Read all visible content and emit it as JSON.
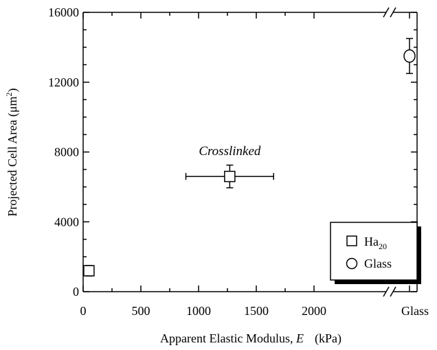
{
  "chart_data": {
    "type": "scatter",
    "xlabel": {
      "text": "Apparent Elastic Modulus, ",
      "symbol": "E",
      "unit": "(kPa)"
    },
    "ylabel": {
      "prefix": "Projected Cell Area (",
      "unit": "μm",
      "sup": "2",
      "suffix": ")"
    },
    "xlim": [
      0,
      2500
    ],
    "ylim": [
      0,
      16000
    ],
    "xticks": [
      0,
      500,
      1000,
      1500,
      2000
    ],
    "xtick_labels": [
      "0",
      "500",
      "1000",
      "1500",
      "2000"
    ],
    "extra_xtick_label": "Glass",
    "yticks": [
      0,
      4000,
      8000,
      12000,
      16000
    ],
    "ytick_labels": [
      "0",
      "4000",
      "8000",
      "12000",
      "16000"
    ],
    "axis_break": true,
    "grid": false,
    "legend_position": "bottom-right",
    "series": [
      {
        "name": "Ha",
        "name_sub": "20",
        "marker": "square",
        "points": [
          {
            "x": 50,
            "y": 1200,
            "xerr": 30,
            "yerr": 300
          },
          {
            "x": 1270,
            "y": 6600,
            "xerr": 380,
            "yerr": 650
          }
        ]
      },
      {
        "name": "Glass",
        "marker": "circle",
        "points": [
          {
            "x": "Glass",
            "y": 13500,
            "yerr": 1000
          }
        ]
      }
    ],
    "annotations": [
      {
        "text": "Crosslinked",
        "x": 1270,
        "y": 7900
      }
    ]
  }
}
